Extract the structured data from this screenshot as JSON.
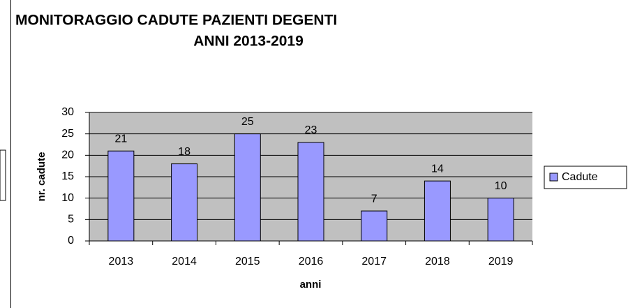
{
  "chart_data": {
    "type": "bar",
    "title": [
      "MONITORAGGIO CADUTE PAZIENTI DEGENTI",
      "ANNI 2013-2019"
    ],
    "x_label": "anni",
    "y_label": "nr. cadute",
    "categories": [
      "2013",
      "2014",
      "2015",
      "2016",
      "2017",
      "2018",
      "2019"
    ],
    "series": [
      {
        "name": "Cadute",
        "color": "#9999ff",
        "values": [
          21,
          18,
          25,
          23,
          7,
          14,
          10
        ]
      }
    ],
    "ylim": [
      0,
      30
    ],
    "yticks": [
      0,
      5,
      10,
      15,
      20,
      25,
      30
    ],
    "grid": true,
    "legend": "right"
  }
}
